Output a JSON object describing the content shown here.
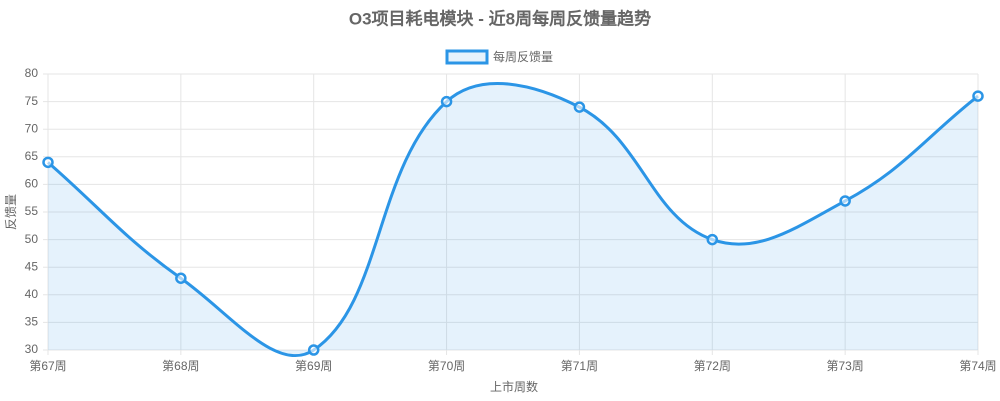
{
  "chart_data": {
    "type": "line",
    "title": "O3项目耗电模块 - 近8周每周反馈量趋势",
    "x_label": "上市周数",
    "y_label": "反馈量",
    "categories": [
      "第67周",
      "第68周",
      "第69周",
      "第70周",
      "第71周",
      "第72周",
      "第73周",
      "第74周"
    ],
    "series": [
      {
        "name": "每周反馈量",
        "color": "#2b95e6",
        "values": [
          64,
          43,
          30,
          75,
          74,
          50,
          57,
          76
        ]
      }
    ],
    "ylim": [
      30,
      80
    ],
    "yticks": [
      30,
      35,
      40,
      45,
      50,
      55,
      60,
      65,
      70,
      75,
      80
    ],
    "grid": true,
    "fill": true
  }
}
